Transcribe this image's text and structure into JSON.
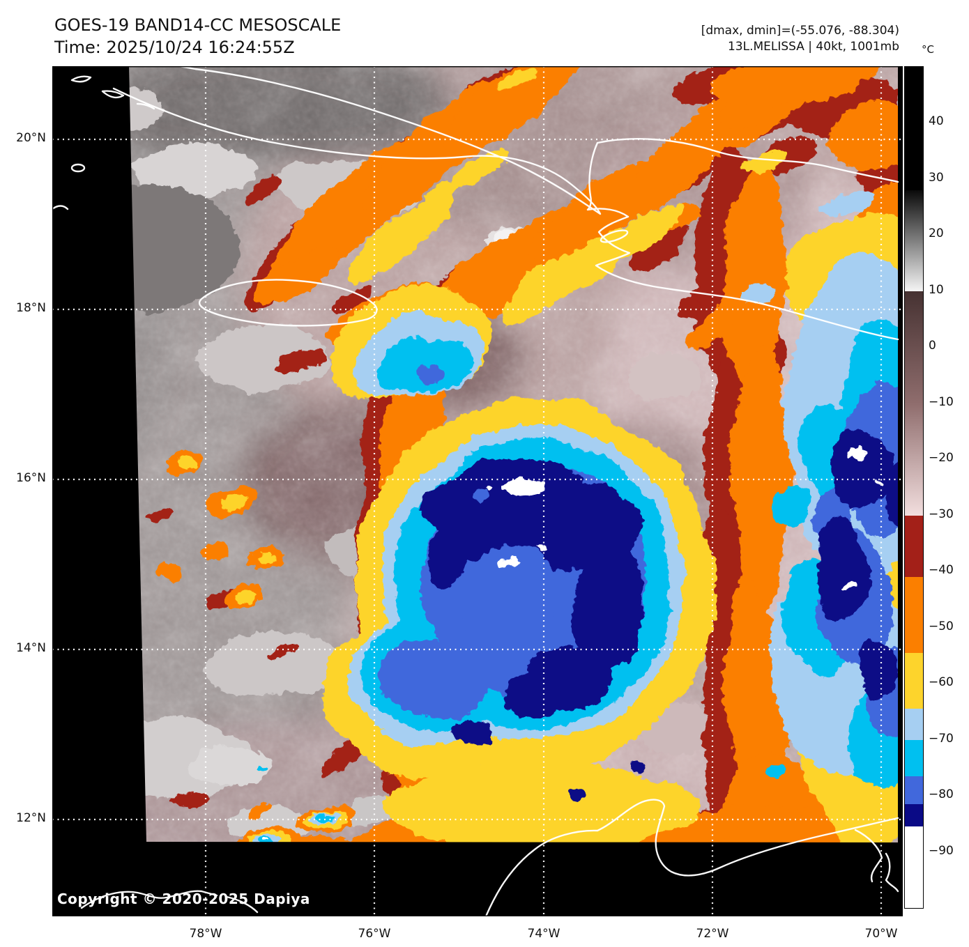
{
  "header": {
    "title_line1": "GOES-19 BAND14-CC MESOSCALE",
    "title_line2": "Time: 2025/10/24 16:24:55Z",
    "info_line1": "[dmax, dmin]=(-55.076, -88.304)",
    "info_line2": "13L.MELISSA | 40kt, 1001mb"
  },
  "colorbar": {
    "unit": "°C",
    "domain": [
      50,
      -100
    ],
    "ticks": [
      {
        "label": "40",
        "value": 40
      },
      {
        "label": "30",
        "value": 30
      },
      {
        "label": "20",
        "value": 20
      },
      {
        "label": "10",
        "value": 10
      },
      {
        "label": "0",
        "value": 0
      },
      {
        "label": "−10",
        "value": -10
      },
      {
        "label": "−20",
        "value": -20
      },
      {
        "label": "−30",
        "value": -30
      },
      {
        "label": "−40",
        "value": -40
      },
      {
        "label": "−50",
        "value": -50
      },
      {
        "label": "−60",
        "value": -60
      },
      {
        "label": "−70",
        "value": -70
      },
      {
        "label": "−80",
        "value": -80
      },
      {
        "label": "−90",
        "value": -90
      }
    ],
    "segments": [
      {
        "from": 50,
        "to": 28,
        "colors": [
          "#000000"
        ]
      },
      {
        "from": 28,
        "to": 10,
        "colors": [
          "#0a0a0a",
          "#f5f5f5"
        ]
      },
      {
        "from": 10,
        "to": -30,
        "colors": [
          "#463232",
          "#8f6d6d",
          "#f2dede"
        ]
      },
      {
        "from": -30,
        "to": -41,
        "colors": [
          "#a32018"
        ]
      },
      {
        "from": -41,
        "to": -54.5,
        "colors": [
          "#fb7f00"
        ]
      },
      {
        "from": -54.5,
        "to": -64.5,
        "colors": [
          "#fdd42c"
        ]
      },
      {
        "from": -64.5,
        "to": -70,
        "colors": [
          "#a6cff2"
        ]
      },
      {
        "from": -70,
        "to": -76.5,
        "colors": [
          "#00c0f0"
        ]
      },
      {
        "from": -76.5,
        "to": -81.5,
        "colors": [
          "#4168dc"
        ]
      },
      {
        "from": -81.5,
        "to": -85.5,
        "colors": [
          "#0a0a86"
        ]
      },
      {
        "from": -85.5,
        "to": -100,
        "colors": [
          "#ffffff"
        ]
      }
    ]
  },
  "map": {
    "lat_labels": [
      "20°N",
      "18°N",
      "16°N",
      "14°N",
      "12°N"
    ],
    "lat_values": [
      20,
      18,
      16,
      14,
      12
    ],
    "lon_labels": [
      "78°W",
      "76°W",
      "74°W",
      "72°W",
      "70°W"
    ],
    "lon_values": [
      78,
      76,
      74,
      72,
      70
    ],
    "copyright": "Copyright © 2020-2025 Dapiya"
  },
  "palette": {
    "cold_red": "#a32018",
    "orange": "#fb7f00",
    "yellow": "#fdd42c",
    "light_blue": "#a6cff2",
    "cyan": "#00c0f0",
    "royal_blue": "#4168dc",
    "navy": "#0a0a86",
    "overshoot_white": "#ffffff",
    "gridline": "#ffffff",
    "coastline": "#ffffff",
    "background": "#000000"
  }
}
